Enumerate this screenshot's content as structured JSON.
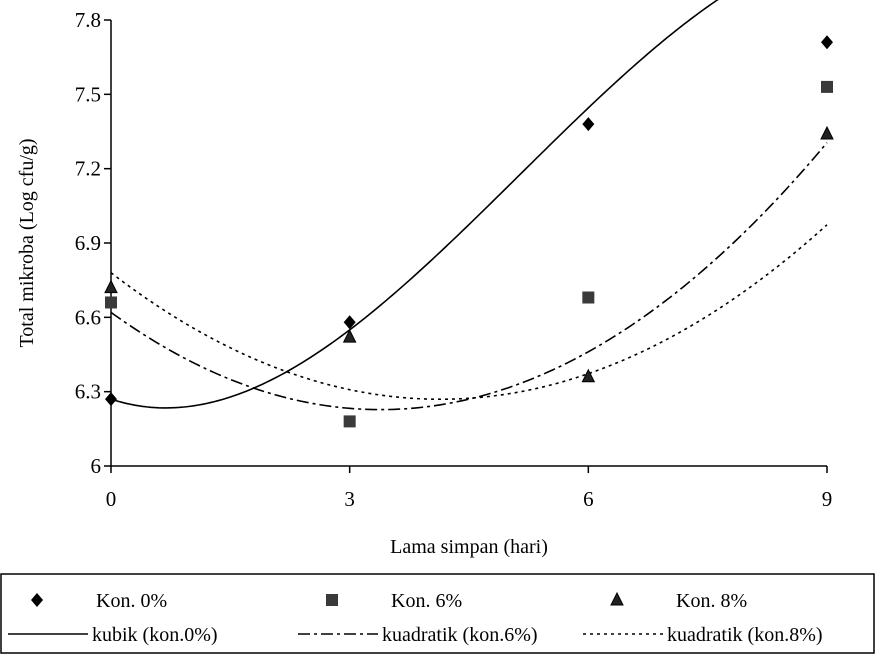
{
  "chart_data": {
    "type": "scatter",
    "xlabel": "Lama simpan (hari)",
    "ylabel": "Total mikroba (Log cfu/g)",
    "xlim": [
      0,
      9
    ],
    "ylim": [
      6,
      7.8
    ],
    "x_ticks": [
      0,
      3,
      6,
      9
    ],
    "y_ticks": [
      6,
      6.3,
      6.6,
      6.9,
      7.2,
      7.5,
      7.8
    ],
    "grid": false,
    "legend_position": "bottom",
    "x": [
      0,
      3,
      6,
      9
    ],
    "series": [
      {
        "name": "Kon. 0%",
        "marker": "diamond",
        "values": [
          6.27,
          6.58,
          7.38,
          7.71
        ]
      },
      {
        "name": "Kon. 6%",
        "marker": "square",
        "values": [
          6.66,
          6.18,
          6.68,
          7.53
        ]
      },
      {
        "name": "Kon. 8%",
        "marker": "triangle",
        "values": [
          6.72,
          6.52,
          6.36,
          7.34
        ]
      }
    ],
    "trendlines": [
      {
        "name": "kubik (kon.0%)",
        "style": "solid",
        "fit": "cubic",
        "coefficients": [
          6.27,
          -0.1059,
          0.0824,
          -0.00535
        ]
      },
      {
        "name": "kuadratik (kon.6%)",
        "style": "dashdot",
        "fit": "quadratic",
        "coefficients": [
          6.62,
          -0.2317,
          0.0342
        ]
      },
      {
        "name": "kuadratik (kon.8%)",
        "style": "dotted",
        "fit": "quadratic",
        "coefficients": [
          6.78,
          -0.2467,
          0.0298
        ]
      }
    ],
    "colors": {
      "markers": "#000000",
      "square_marker": "#3a3a3a",
      "lines": "#000000"
    }
  }
}
